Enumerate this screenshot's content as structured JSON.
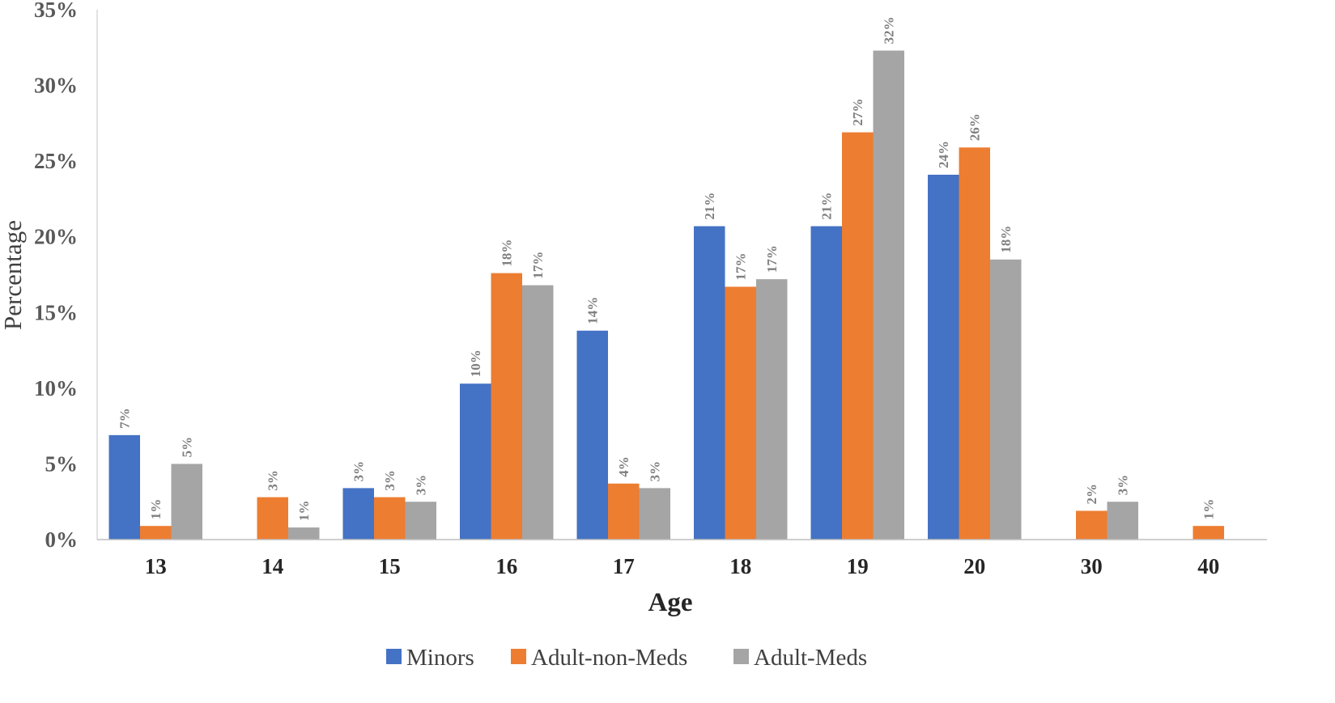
{
  "chart_data": {
    "type": "bar",
    "title": "",
    "xlabel": "Age",
    "ylabel": "Percentage",
    "ylim": [
      0,
      35
    ],
    "yticks": [
      "0%",
      "5%",
      "10%",
      "15%",
      "20%",
      "25%",
      "30%",
      "35%"
    ],
    "categories": [
      "13",
      "14",
      "15",
      "16",
      "17",
      "18",
      "19",
      "20",
      "30",
      "40"
    ],
    "legend_position": "bottom",
    "series": [
      {
        "name": "Minors",
        "color": "#4472C4",
        "values": [
          6.9,
          null,
          3.4,
          10.3,
          13.8,
          20.7,
          20.7,
          24.1,
          null,
          null
        ],
        "labels": [
          "7%",
          "",
          "3%",
          "10%",
          "14%",
          "21%",
          "21%",
          "24%",
          "",
          ""
        ]
      },
      {
        "name": "Adult-non-Meds",
        "color": "#ED7D31",
        "values": [
          0.9,
          2.8,
          2.8,
          17.6,
          3.7,
          16.7,
          26.9,
          25.9,
          1.9,
          0.9
        ],
        "labels": [
          "1%",
          "3%",
          "3%",
          "18%",
          "4%",
          "17%",
          "27%",
          "26%",
          "2%",
          "1%"
        ]
      },
      {
        "name": "Adult-Meds",
        "color": "#A5A5A5",
        "values": [
          5.0,
          0.8,
          2.5,
          16.8,
          3.4,
          17.2,
          32.3,
          18.5,
          2.5,
          null
        ],
        "labels": [
          "5%",
          "1%",
          "3%",
          "17%",
          "3%",
          "17%",
          "32%",
          "18%",
          "3%",
          ""
        ]
      }
    ]
  }
}
